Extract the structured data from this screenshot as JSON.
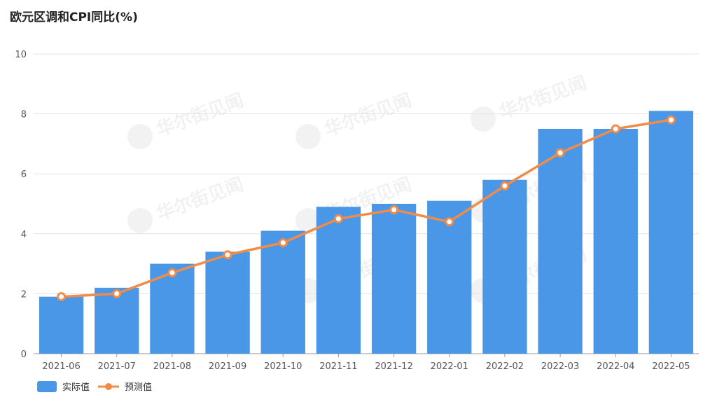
{
  "chart_data": {
    "type": "bar",
    "title": "欧元区调和CPI同比(%)",
    "categories": [
      "2021-06",
      "2021-07",
      "2021-08",
      "2021-09",
      "2021-10",
      "2021-11",
      "2021-12",
      "2022-01",
      "2022-02",
      "2022-03",
      "2022-04",
      "2022-05"
    ],
    "series": [
      {
        "name": "实际值",
        "type": "bar",
        "color": "#4a97e8",
        "values": [
          1.9,
          2.2,
          3.0,
          3.4,
          4.1,
          4.9,
          5.0,
          5.1,
          5.8,
          7.5,
          7.5,
          8.1
        ]
      },
      {
        "name": "预测值",
        "type": "line",
        "color": "#f08c4a",
        "values": [
          1.9,
          2.0,
          2.7,
          3.3,
          3.7,
          4.5,
          4.8,
          4.4,
          5.6,
          6.7,
          7.5,
          7.8
        ]
      }
    ],
    "ylim": [
      0,
      10
    ],
    "yticks": [
      0,
      2,
      4,
      6,
      8,
      10
    ],
    "grid": true,
    "legend": "bottom-left",
    "xlabel": "",
    "ylabel": "",
    "watermark": "华尔街见闻"
  }
}
